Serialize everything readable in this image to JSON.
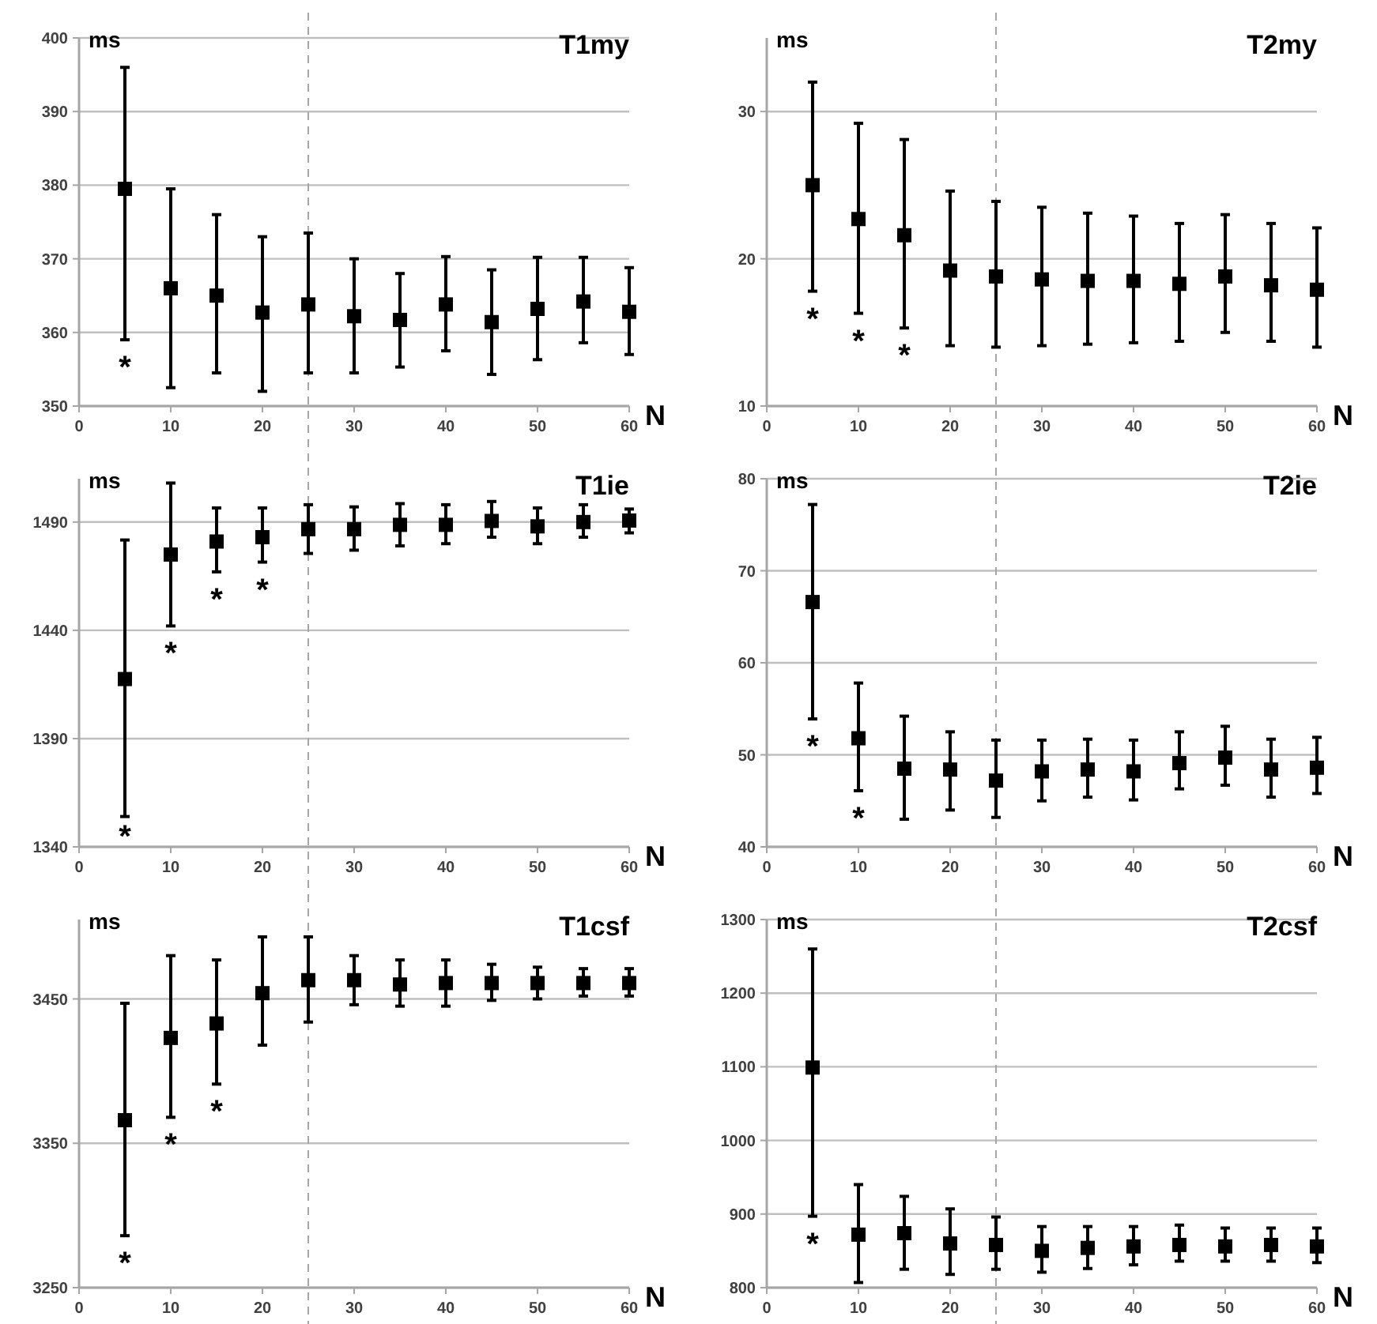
{
  "chart_data": [
    {
      "type": "scatter",
      "title": "T1my",
      "ylabel": "ms",
      "xlabel": "N",
      "marker": "square",
      "grid": "y",
      "xlim": [
        0,
        60
      ],
      "xticks": [
        0,
        10,
        20,
        30,
        40,
        50,
        60
      ],
      "ylim": [
        350,
        400
      ],
      "yticks": [
        350,
        360,
        370,
        380,
        390,
        400
      ],
      "x": [
        5,
        10,
        15,
        20,
        25,
        30,
        35,
        40,
        45,
        50,
        55,
        60
      ],
      "series": [
        {
          "color": "#000000",
          "values": [
            379.5,
            366,
            365,
            362.7,
            363.8,
            362.2,
            361.7,
            363.8,
            361.4,
            363.2,
            364.2,
            362.8
          ],
          "errors": [
            [
              359,
              396
            ],
            [
              352.5,
              379.5
            ],
            [
              354.5,
              376
            ],
            [
              352,
              373
            ],
            [
              354.5,
              373.5
            ],
            [
              354.5,
              370
            ],
            [
              355.3,
              368
            ],
            [
              357.5,
              370.3
            ],
            [
              354.3,
              368.5
            ],
            [
              356.3,
              370.2
            ],
            [
              358.6,
              370.2
            ],
            [
              357,
              368.8
            ]
          ]
        }
      ],
      "ref_lines": [
        {
          "axis": "x",
          "value": 25,
          "color": "#a6a6a6",
          "line_style": "dashed"
        }
      ],
      "annotations": [
        "*"
      ]
    },
    {
      "type": "scatter",
      "title": "T2my",
      "ylabel": "ms",
      "xlabel": "N",
      "marker": "square",
      "grid": "y",
      "xlim": [
        0,
        60
      ],
      "xticks": [
        0,
        10,
        20,
        30,
        40,
        50,
        60
      ],
      "ylim": [
        10,
        35
      ],
      "yticks": [
        10,
        20,
        30
      ],
      "x": [
        5,
        10,
        15,
        20,
        25,
        30,
        35,
        40,
        45,
        50,
        55,
        60
      ],
      "series": [
        {
          "color": "#000000",
          "values": [
            25,
            22.7,
            21.6,
            19.2,
            18.8,
            18.6,
            18.5,
            18.5,
            18.3,
            18.8,
            18.2,
            17.9
          ],
          "errors": [
            [
              17.8,
              32
            ],
            [
              16.3,
              29.2
            ],
            [
              15.3,
              28.1
            ],
            [
              14.1,
              24.6
            ],
            [
              14,
              23.9
            ],
            [
              14.1,
              23.5
            ],
            [
              14.2,
              23.1
            ],
            [
              14.3,
              22.9
            ],
            [
              14.4,
              22.4
            ],
            [
              15,
              23
            ],
            [
              14.4,
              22.4
            ],
            [
              14,
              22.1
            ]
          ]
        }
      ],
      "ref_lines": [
        {
          "axis": "x",
          "value": 25,
          "color": "#a6a6a6",
          "line_style": "dashed"
        }
      ],
      "annotations": [
        "*",
        "*",
        "*"
      ]
    },
    {
      "type": "scatter",
      "title": "T1ie",
      "ylabel": "ms",
      "xlabel": "N",
      "marker": "square",
      "grid": "y",
      "xlim": [
        0,
        60
      ],
      "xticks": [
        0,
        10,
        20,
        30,
        40,
        50,
        60
      ],
      "ylim": [
        1340,
        1510
      ],
      "yticks": [
        1340,
        1390,
        1440,
        1490
      ],
      "x": [
        5,
        10,
        15,
        20,
        25,
        30,
        35,
        40,
        45,
        50,
        55,
        60
      ],
      "series": [
        {
          "color": "#000000",
          "values": [
            1417.5,
            1475,
            1481,
            1483,
            1486.7,
            1486.7,
            1488.7,
            1488.7,
            1490.5,
            1488,
            1490,
            1490.7
          ],
          "errors": [
            [
              1354,
              1481.7
            ],
            [
              1442,
              1508
            ],
            [
              1467,
              1496.5
            ],
            [
              1471.5,
              1496.5
            ],
            [
              1475.5,
              1498
            ],
            [
              1477,
              1497
            ],
            [
              1479,
              1498.5
            ],
            [
              1480,
              1498
            ],
            [
              1483,
              1499.5
            ],
            [
              1480,
              1496.5
            ],
            [
              1483,
              1498
            ],
            [
              1485,
              1496
            ]
          ]
        }
      ],
      "ref_lines": [
        {
          "axis": "x",
          "value": 25,
          "color": "#a6a6a6",
          "line_style": "dashed"
        }
      ],
      "annotations": [
        "*",
        "*",
        "*",
        "*"
      ]
    },
    {
      "type": "scatter",
      "title": "T2ie",
      "ylabel": "ms",
      "xlabel": "N",
      "marker": "square",
      "grid": "y",
      "xlim": [
        0,
        60
      ],
      "xticks": [
        0,
        10,
        20,
        30,
        40,
        50,
        60
      ],
      "ylim": [
        40,
        80
      ],
      "yticks": [
        40,
        50,
        60,
        70,
        80
      ],
      "x": [
        5,
        10,
        15,
        20,
        25,
        30,
        35,
        40,
        45,
        50,
        55,
        60
      ],
      "series": [
        {
          "color": "#000000",
          "values": [
            66.6,
            51.8,
            48.5,
            48.4,
            47.2,
            48.2,
            48.4,
            48.2,
            49.1,
            49.7,
            48.4,
            48.6
          ],
          "errors": [
            [
              53.9,
              77.2
            ],
            [
              46.1,
              57.8
            ],
            [
              43,
              54.2
            ],
            [
              44,
              52.5
            ],
            [
              43.2,
              51.6
            ],
            [
              45,
              51.6
            ],
            [
              45.4,
              51.7
            ],
            [
              45.1,
              51.6
            ],
            [
              46.3,
              52.5
            ],
            [
              46.7,
              53.1
            ],
            [
              45.4,
              51.7
            ],
            [
              45.8,
              51.9
            ]
          ]
        }
      ],
      "ref_lines": [
        {
          "axis": "x",
          "value": 25,
          "color": "#a6a6a6",
          "line_style": "dashed"
        }
      ],
      "annotations": [
        "*",
        "*"
      ]
    },
    {
      "type": "scatter",
      "title": "T1csf",
      "ylabel": "ms",
      "xlabel": "N",
      "marker": "square",
      "grid": "y",
      "xlim": [
        0,
        60
      ],
      "xticks": [
        0,
        10,
        20,
        30,
        40,
        50,
        60
      ],
      "ylim": [
        3250,
        3505
      ],
      "yticks": [
        3250,
        3350,
        3450
      ],
      "x": [
        5,
        10,
        15,
        20,
        25,
        30,
        35,
        40,
        45,
        50,
        55,
        60
      ],
      "series": [
        {
          "color": "#000000",
          "values": [
            3366,
            3423,
            3433,
            3454,
            3463,
            3463,
            3460,
            3461,
            3461,
            3461,
            3461,
            3461
          ],
          "errors": [
            [
              3286,
              3447
            ],
            [
              3368,
              3480
            ],
            [
              3391,
              3477
            ],
            [
              3418,
              3493
            ],
            [
              3434,
              3493
            ],
            [
              3446,
              3480
            ],
            [
              3445,
              3477
            ],
            [
              3445,
              3477
            ],
            [
              3449,
              3474
            ],
            [
              3450,
              3472
            ],
            [
              3452,
              3471
            ],
            [
              3452,
              3471
            ]
          ]
        }
      ],
      "ref_lines": [
        {
          "axis": "x",
          "value": 25,
          "color": "#a6a6a6",
          "line_style": "dashed"
        }
      ],
      "annotations": [
        "*",
        "*",
        "*"
      ]
    },
    {
      "type": "scatter",
      "title": "T2csf",
      "ylabel": "ms",
      "xlabel": "N",
      "marker": "square",
      "grid": "y",
      "xlim": [
        0,
        60
      ],
      "xticks": [
        0,
        10,
        20,
        30,
        40,
        50,
        60
      ],
      "ylim": [
        800,
        1300
      ],
      "yticks": [
        800,
        900,
        1000,
        1100,
        1200,
        1300
      ],
      "x": [
        5,
        10,
        15,
        20,
        25,
        30,
        35,
        40,
        45,
        50,
        55,
        60
      ],
      "series": [
        {
          "color": "#000000",
          "values": [
            1099,
            872,
            874,
            860,
            858,
            850,
            854,
            856,
            858,
            856,
            858,
            856
          ],
          "errors": [
            [
              897,
              1260
            ],
            [
              807,
              940
            ],
            [
              825,
              924
            ],
            [
              818,
              907
            ],
            [
              825,
              896
            ],
            [
              821,
              883
            ],
            [
              826,
              883
            ],
            [
              831,
              883
            ],
            [
              836,
              885
            ],
            [
              836,
              881
            ],
            [
              836,
              881
            ],
            [
              834,
              881
            ]
          ]
        }
      ],
      "ref_lines": [
        {
          "axis": "x",
          "value": 25,
          "color": "#a6a6a6",
          "line_style": "dashed"
        }
      ],
      "annotations": [
        "*"
      ]
    }
  ]
}
